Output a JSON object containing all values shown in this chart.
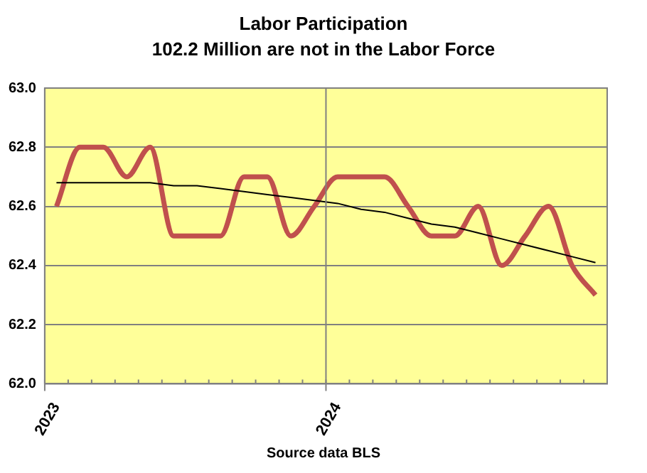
{
  "chart_data": {
    "type": "line",
    "title": "Labor Participation",
    "subtitle": "102.2 Million are not in the Labor Force",
    "categories": [
      "2023",
      null,
      null,
      null,
      null,
      null,
      null,
      null,
      null,
      null,
      null,
      null,
      "2024",
      null,
      null,
      null,
      null,
      null,
      null,
      null,
      null,
      null,
      null,
      null
    ],
    "series": [
      {
        "color": "#c0504d",
        "values": [
          62.6,
          62.8,
          62.8,
          62.7,
          62.8,
          62.5,
          62.5,
          62.5,
          62.7,
          62.7,
          62.5,
          62.6,
          62.7,
          62.7,
          62.7,
          62.6,
          62.5,
          62.5,
          62.6,
          62.4,
          62.5,
          62.6,
          62.4,
          62.3
        ]
      },
      {
        "color": "#000000",
        "values": [
          62.68,
          62.68,
          62.68,
          62.68,
          62.68,
          62.67,
          62.67,
          62.66,
          62.65,
          62.64,
          62.63,
          62.62,
          62.61,
          62.59,
          62.58,
          62.56,
          62.54,
          62.53,
          62.51,
          62.49,
          62.47,
          62.45,
          62.43,
          62.41
        ]
      }
    ],
    "ylim": [
      62.0,
      63.0
    ],
    "yticks": [
      {
        "value": 62.0,
        "label": "62.0"
      },
      {
        "value": 62.2,
        "label": "62.2"
      },
      {
        "value": 62.4,
        "label": "62.4"
      },
      {
        "value": 62.6,
        "label": "62.6"
      },
      {
        "value": 62.8,
        "label": "62.8"
      },
      {
        "value": 63.0,
        "label": "63.0"
      }
    ],
    "grid": true,
    "legend": false,
    "marker": "none",
    "line_style": "solid",
    "annotations": [
      "Source data BLS"
    ]
  }
}
